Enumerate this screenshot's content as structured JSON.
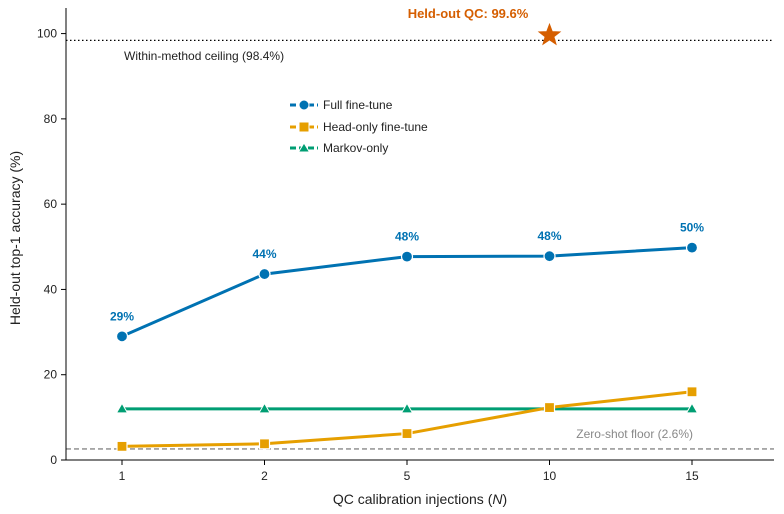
{
  "chart_data": {
    "type": "line",
    "title": "",
    "xlabel": "QC calibration injections (",
    "xlabel_var": "N",
    "xlabel_close": ")",
    "ylabel": "Held-out top-1 accuracy (%)",
    "ylim": [
      0,
      106
    ],
    "yticks": [
      0,
      20,
      40,
      60,
      80,
      100
    ],
    "x_tick_labels": [
      "1",
      "2",
      "5",
      "10",
      "15"
    ],
    "grid": false,
    "legend_position": "upper-center",
    "series": [
      {
        "name": "Full fine-tune",
        "color": "#0072b2",
        "marker": "circle",
        "values": [
          29,
          43.6,
          47.7,
          47.8,
          49.8
        ],
        "data_labels": [
          "29%",
          "44%",
          "48%",
          "48%",
          "50%"
        ]
      },
      {
        "name": "Head-only fine-tune",
        "color": "#e69f00",
        "marker": "square",
        "values": [
          3.2,
          3.8,
          6.2,
          12.3,
          16
        ]
      },
      {
        "name": "Markov-only",
        "color": "#009e73",
        "marker": "triangle",
        "values": [
          12,
          12,
          12,
          12,
          12
        ]
      }
    ],
    "reference_lines": [
      {
        "label": "Within-method ceiling (98.4%)",
        "y": 98.4,
        "style": "dotted",
        "color": "#000000",
        "text_color": "#222222"
      },
      {
        "label": "Zero-shot floor (2.6%)",
        "y": 2.6,
        "style": "dashed",
        "color": "#888888",
        "text_color": "#888888"
      }
    ],
    "highlight_point": {
      "label": "Held-out QC: 99.6%",
      "x_label": "10",
      "y": 99.6,
      "marker": "star",
      "color": "#d55e00"
    }
  }
}
